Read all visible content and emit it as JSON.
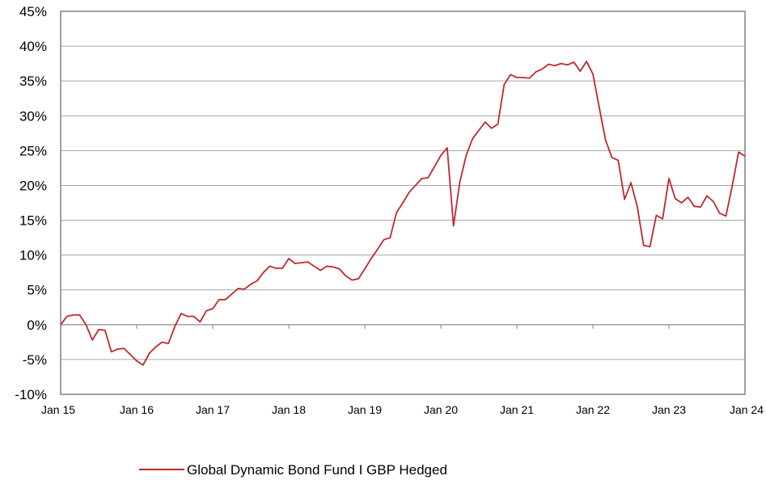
{
  "chart_data": {
    "type": "line",
    "title": "",
    "xlabel": "",
    "ylabel": "",
    "ylim": [
      -10,
      45
    ],
    "y_ticks": [
      "45%",
      "40%",
      "35%",
      "30%",
      "25%",
      "20%",
      "15%",
      "10%",
      "5%",
      "0%",
      "-5%",
      "-10%"
    ],
    "y_tick_values": [
      45,
      40,
      35,
      30,
      25,
      20,
      15,
      10,
      5,
      0,
      -5,
      -10
    ],
    "x_ticks": [
      "Jan 15",
      "Jan 16",
      "Jan 17",
      "Jan 18",
      "Jan 19",
      "Jan 20",
      "Jan 21",
      "Jan 22",
      "Jan 23",
      "Jan 24"
    ],
    "grid": true,
    "legend_position": "bottom",
    "series": [
      {
        "name": "Global Dynamic Bond Fund I GBP Hedged",
        "color": "#c0282d",
        "x": [
          "2015-01",
          "2015-02",
          "2015-03",
          "2015-04",
          "2015-05",
          "2015-06",
          "2015-07",
          "2015-08",
          "2015-09",
          "2015-10",
          "2015-11",
          "2015-12",
          "2016-01",
          "2016-02",
          "2016-03",
          "2016-04",
          "2016-05",
          "2016-06",
          "2016-07",
          "2016-08",
          "2016-09",
          "2016-10",
          "2016-11",
          "2016-12",
          "2017-01",
          "2017-02",
          "2017-03",
          "2017-04",
          "2017-05",
          "2017-06",
          "2017-07",
          "2017-08",
          "2017-09",
          "2017-10",
          "2017-11",
          "2017-12",
          "2018-01",
          "2018-02",
          "2018-03",
          "2018-04",
          "2018-05",
          "2018-06",
          "2018-07",
          "2018-08",
          "2018-09",
          "2018-10",
          "2018-11",
          "2018-12",
          "2019-01",
          "2019-02",
          "2019-03",
          "2019-04",
          "2019-05",
          "2019-06",
          "2019-07",
          "2019-08",
          "2019-09",
          "2019-10",
          "2019-11",
          "2019-12",
          "2020-01",
          "2020-02",
          "2020-03",
          "2020-04",
          "2020-05",
          "2020-06",
          "2020-07",
          "2020-08",
          "2020-09",
          "2020-10",
          "2020-11",
          "2020-12",
          "2021-01",
          "2021-02",
          "2021-03",
          "2021-04",
          "2021-05",
          "2021-06",
          "2021-07",
          "2021-08",
          "2021-09",
          "2021-10",
          "2021-11",
          "2021-12",
          "2022-01",
          "2022-02",
          "2022-03",
          "2022-04",
          "2022-05",
          "2022-06",
          "2022-07",
          "2022-08",
          "2022-09",
          "2022-10",
          "2022-11",
          "2022-12",
          "2023-01",
          "2023-02",
          "2023-03",
          "2023-04",
          "2023-05",
          "2023-06",
          "2023-07",
          "2023-08",
          "2023-09",
          "2023-10",
          "2023-11",
          "2023-12",
          "2024-01"
        ],
        "values": [
          0.0,
          1.2,
          1.4,
          1.4,
          0.0,
          -2.2,
          -0.7,
          -0.8,
          -3.9,
          -3.5,
          -3.4,
          -4.3,
          -5.2,
          -5.8,
          -4.1,
          -3.2,
          -2.5,
          -2.7,
          -0.3,
          1.6,
          1.2,
          1.2,
          0.4,
          2.0,
          2.3,
          3.6,
          3.6,
          4.4,
          5.2,
          5.1,
          5.8,
          6.3,
          7.5,
          8.4,
          8.1,
          8.1,
          9.5,
          8.8,
          8.9,
          9.0,
          8.4,
          7.8,
          8.4,
          8.3,
          8.0,
          7.0,
          6.4,
          6.6,
          8.0,
          9.5,
          10.8,
          12.2,
          12.5,
          16.1,
          17.5,
          19.0,
          20.0,
          21.0,
          21.1,
          22.7,
          24.3,
          25.4,
          14.2,
          20.5,
          24.3,
          26.7,
          27.9,
          29.1,
          28.2,
          28.8,
          34.5,
          35.9,
          35.5,
          35.5,
          35.4,
          36.3,
          36.7,
          37.4,
          37.2,
          37.5,
          37.3,
          37.7,
          36.4,
          37.8,
          36.0,
          31.2,
          26.5,
          24.0,
          23.6,
          18.0,
          20.4,
          17.0,
          11.4,
          11.2,
          15.7,
          15.2,
          21.0,
          18.1,
          17.5,
          18.3,
          17.0,
          16.9,
          18.5,
          17.7,
          16.0,
          15.6,
          20.0,
          24.8,
          24.2
        ]
      }
    ]
  }
}
